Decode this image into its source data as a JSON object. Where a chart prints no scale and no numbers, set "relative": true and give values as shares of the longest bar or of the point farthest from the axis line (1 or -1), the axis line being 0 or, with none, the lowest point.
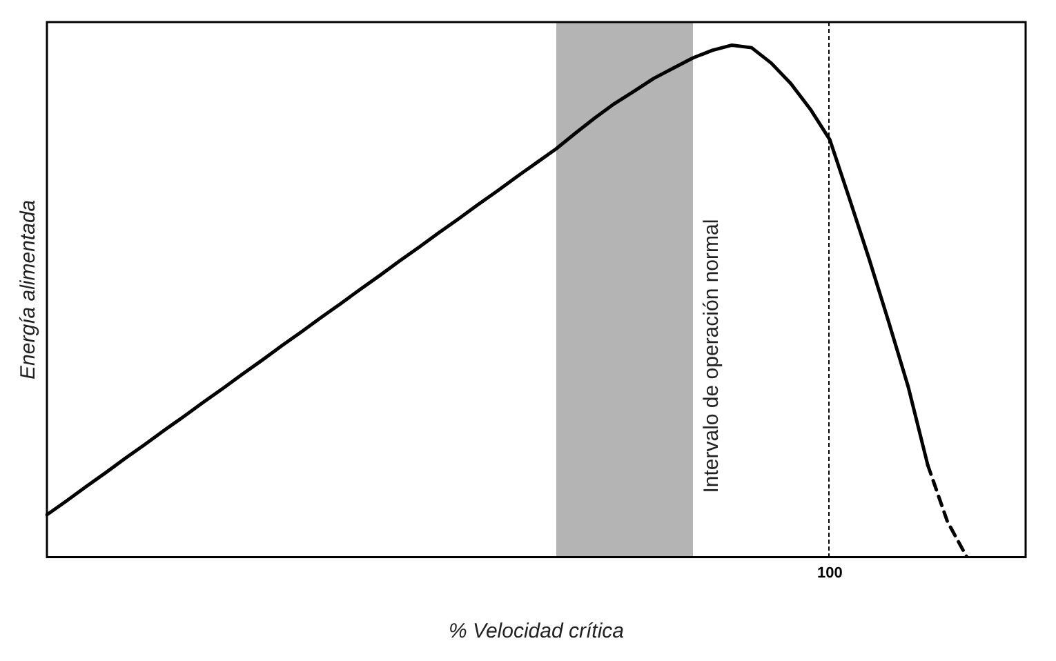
{
  "chart_data": {
    "type": "line",
    "relative": true,
    "xlabel": "% Velocidad crítica",
    "ylabel": "Energía alimentada",
    "categories": [
      null,
      null,
      null,
      null,
      null,
      null,
      null,
      null,
      null,
      null,
      null,
      null,
      null,
      null,
      null,
      null,
      null,
      null,
      null,
      null,
      null,
      null,
      null,
      null,
      null,
      null,
      null,
      null,
      null,
      null,
      null,
      null,
      null,
      null,
      null,
      null,
      null,
      null,
      null,
      null,
      null,
      null,
      null,
      null,
      null,
      null,
      null,
      null,
      null,
      null,
      null
    ],
    "legend": false,
    "marker": "none",
    "series": [
      {
        "color": "#000000",
        "line_style": "solid",
        "values": [
          0.083,
          0.11,
          0.138,
          0.165,
          0.193,
          0.22,
          0.248,
          0.275,
          0.303,
          0.33,
          0.358,
          0.385,
          0.413,
          0.44,
          0.468,
          0.495,
          0.523,
          0.55,
          0.578,
          0.605,
          0.633,
          0.66,
          0.688,
          0.715,
          0.743,
          0.77,
          0.797,
          0.828,
          0.858,
          0.886,
          0.91,
          0.935,
          0.955,
          0.975,
          0.99,
          1.0,
          0.995,
          0.965,
          0.925,
          0.875,
          0.815,
          0.7,
          0.583,
          0.46,
          0.333,
          0.18,
          null,
          null,
          null,
          null,
          null
        ]
      },
      {
        "color": "#000000",
        "line_style": "dashed",
        "values": [
          null,
          null,
          null,
          null,
          null,
          null,
          null,
          null,
          null,
          null,
          null,
          null,
          null,
          null,
          null,
          null,
          null,
          null,
          null,
          null,
          null,
          null,
          null,
          null,
          null,
          null,
          null,
          null,
          null,
          null,
          null,
          null,
          null,
          null,
          null,
          null,
          null,
          null,
          null,
          null,
          null,
          null,
          null,
          null,
          null,
          0.18,
          0.07,
          0,
          null,
          null,
          null
        ]
      }
    ],
    "annotations": [
      "Intervalo de operación normal",
      "100"
    ]
  }
}
